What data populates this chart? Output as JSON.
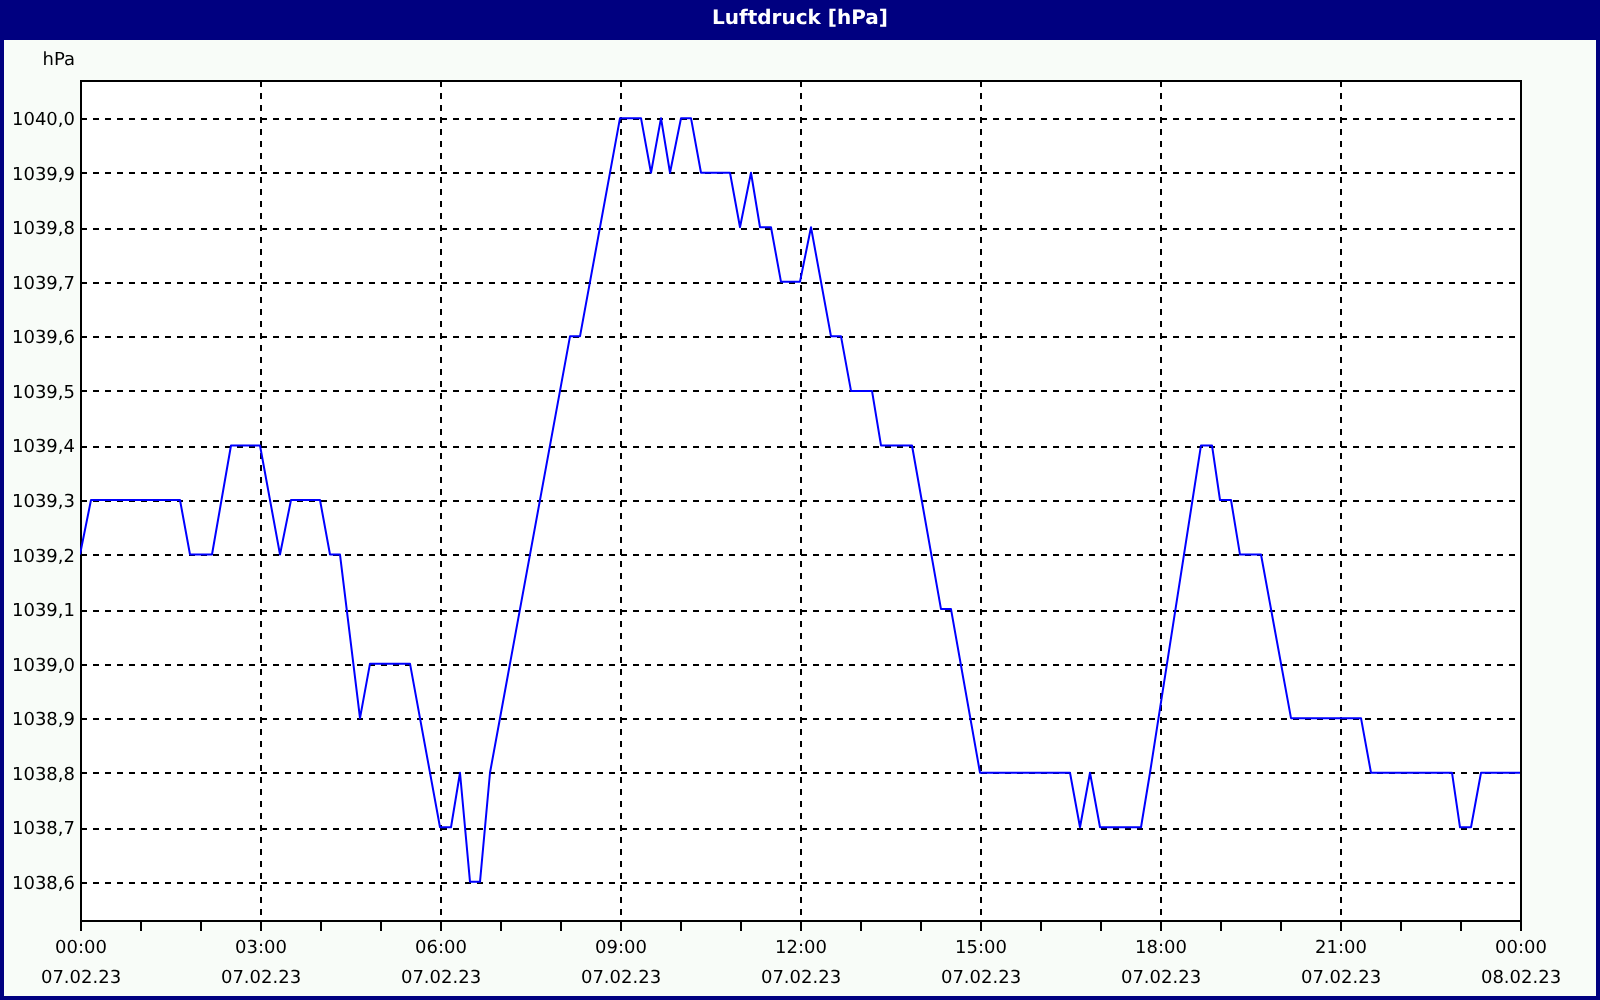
{
  "chart_data": {
    "type": "line",
    "title": "Luftdruck [hPa]",
    "ylabel": "hPa",
    "series": [
      {
        "color": "#0000ff",
        "x": [
          "--02-07T00:00",
          "--02-07T00:11",
          "--02-07T01:40",
          "--02-07T01:50",
          "--02-07T02:12",
          "--02-07T02:31",
          "--02-07T03:00",
          "--02-07T03:20",
          "--02-07T03:31",
          "--02-07T04:00",
          "--02-07T04:10",
          "--02-07T04:20",
          "--02-07T04:40",
          "--02-07T04:50",
          "--02-07T05:30",
          "--02-07T06:00",
          "--02-07T06:11",
          "--02-07T06:20",
          "--02-07T06:30",
          "--02-07T06:40",
          "--02-07T06:50",
          "--02-07T08:10",
          "--02-07T08:20",
          "--02-07T09:00",
          "--02-07T09:21",
          "--02-07T09:31",
          "--02-07T09:41",
          "--02-07T09:50",
          "--02-07T10:01",
          "--02-07T10:11",
          "--02-07T10:21",
          "--02-07T10:50",
          "--02-07T11:00",
          "--02-07T11:11",
          "--02-07T11:20",
          "--02-07T11:31",
          "--02-07T11:41",
          "--02-07T12:00",
          "--02-07T12:11",
          "--02-07T12:31",
          "--02-07T12:41",
          "--02-07T12:51",
          "--02-07T13:12",
          "--02-07T13:21",
          "--02-07T13:52",
          "--02-07T14:21",
          "--02-07T14:31",
          "--02-07T15:00",
          "--02-07T16:30",
          "--02-07T16:40",
          "--02-07T16:50",
          "--02-07T17:00",
          "--02-07T17:41",
          "--02-07T17:50",
          "--02-07T18:41",
          "--02-07T18:52",
          "--02-07T19:00",
          "--02-07T19:11",
          "--02-07T19:20",
          "--02-07T19:41",
          "--02-07T20:11",
          "--02-07T21:21",
          "--02-07T21:31",
          "--02-07T22:52",
          "--02-07T23:00",
          "--02-07T23:11",
          "--02-07T23:21",
          "--02-08T00:00"
        ],
        "values": [
          1039.2,
          1039.3,
          1039.3,
          1039.2,
          1039.2,
          1039.4,
          1039.4,
          1039.2,
          1039.3,
          1039.3,
          1039.2,
          1039.2,
          1038.9,
          1039.0,
          1039.0,
          1038.7,
          1038.7,
          1038.8,
          1038.6,
          1038.6,
          1038.8,
          1039.6,
          1039.6,
          1040.0,
          1040.0,
          1039.9,
          1040.0,
          1039.9,
          1040.0,
          1040.0,
          1039.9,
          1039.9,
          1039.8,
          1039.9,
          1039.8,
          1039.8,
          1039.7,
          1039.7,
          1039.8,
          1039.6,
          1039.6,
          1039.5,
          1039.5,
          1039.4,
          1039.4,
          1039.1,
          1039.1,
          1038.8,
          1038.8,
          1038.7,
          1038.8,
          1038.7,
          1038.7,
          1038.8,
          1039.4,
          1039.4,
          1039.3,
          1039.3,
          1039.2,
          1039.2,
          1038.9,
          1038.9,
          1038.8,
          1038.8,
          1038.7,
          1038.7,
          1038.8,
          1038.8
        ]
      }
    ],
    "xlim": [
      "--02-07T00:00",
      "--02-08T00:00"
    ],
    "ylim": [
      1038.53,
      1040.07
    ],
    "xticks": [
      {
        "value": "--02-07T00:00",
        "label": "00:00 07.02.23"
      },
      {
        "value": "--02-07T01:00",
        "label": null
      },
      {
        "value": "--02-07T02:00",
        "label": null
      },
      {
        "value": "--02-07T03:00",
        "label": "03:00 07.02.23"
      },
      {
        "value": "--02-07T04:00",
        "label": null
      },
      {
        "value": "--02-07T05:00",
        "label": null
      },
      {
        "value": "--02-07T06:00",
        "label": "06:00 07.02.23"
      },
      {
        "value": "--02-07T07:00",
        "label": null
      },
      {
        "value": "--02-07T08:00",
        "label": null
      },
      {
        "value": "--02-07T09:00",
        "label": "09:00 07.02.23"
      },
      {
        "value": "--02-07T10:00",
        "label": null
      },
      {
        "value": "--02-07T11:00",
        "label": null
      },
      {
        "value": "--02-07T12:00",
        "label": "12:00 07.02.23"
      },
      {
        "value": "--02-07T13:00",
        "label": null
      },
      {
        "value": "--02-07T14:00",
        "label": null
      },
      {
        "value": "--02-07T15:00",
        "label": "15:00 07.02.23"
      },
      {
        "value": "--02-07T16:00",
        "label": null
      },
      {
        "value": "--02-07T17:00",
        "label": null
      },
      {
        "value": "--02-07T18:00",
        "label": "18:00 07.02.23"
      },
      {
        "value": "--02-07T19:00",
        "label": null
      },
      {
        "value": "--02-07T20:00",
        "label": null
      },
      {
        "value": "--02-07T21:00",
        "label": "21:00 07.02.23"
      },
      {
        "value": "--02-07T22:00",
        "label": null
      },
      {
        "value": "--02-07T23:00",
        "label": null
      },
      {
        "value": "--02-08T00:00",
        "label": "00:00 08.02.23"
      }
    ],
    "yticks": [
      {
        "value": 1038.6,
        "label": "1038,6"
      },
      {
        "value": 1038.7,
        "label": "1038,7"
      },
      {
        "value": 1038.8,
        "label": "1038,8"
      },
      {
        "value": 1038.9,
        "label": "1038,9"
      },
      {
        "value": 1039.0,
        "label": "1039,0"
      },
      {
        "value": 1039.1,
        "label": "1039,1"
      },
      {
        "value": 1039.2,
        "label": "1039,2"
      },
      {
        "value": 1039.3,
        "label": "1039,3"
      },
      {
        "value": 1039.4,
        "label": "1039,4"
      },
      {
        "value": 1039.5,
        "label": "1039,5"
      },
      {
        "value": 1039.6,
        "label": "1039,6"
      },
      {
        "value": 1039.7,
        "label": "1039,7"
      },
      {
        "value": 1039.8,
        "label": "1039,8"
      },
      {
        "value": 1039.9,
        "label": "1039,9"
      },
      {
        "value": 1040.0,
        "label": "1040,0"
      }
    ],
    "grid": true,
    "marker": "none",
    "line_style": "solid"
  }
}
